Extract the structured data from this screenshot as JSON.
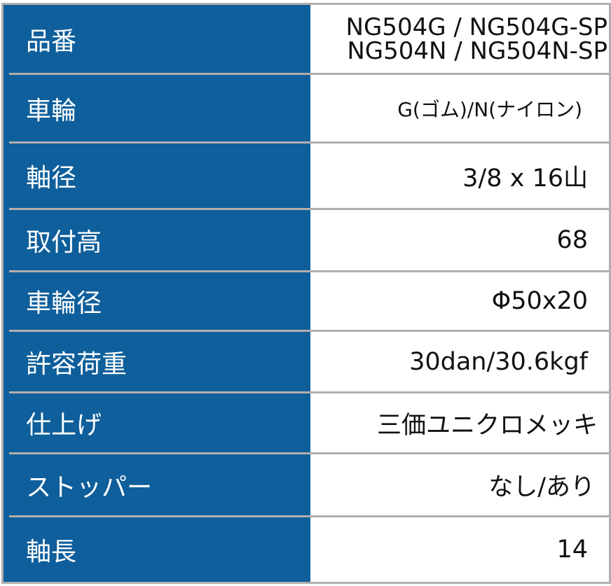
{
  "colors": {
    "header_bg": "#0e5f9b",
    "border": "#b3aeae"
  },
  "rows": [
    {
      "label": "品番",
      "value_lines": [
        "NG504G / NG504G-SP",
        "NG504N / NG504N-SP"
      ]
    },
    {
      "label": "車輪",
      "value": "G(ゴム)/N(ナイロン)"
    },
    {
      "label": "軸径",
      "value": "3/8 x 16山"
    },
    {
      "label": "取付高",
      "value": "68"
    },
    {
      "label": "車輪径",
      "value": "Φ50x20"
    },
    {
      "label": "許容荷重",
      "value": "30dan/30.6kgf"
    },
    {
      "label": "仕上げ",
      "value": "三価ユニクロメッキ"
    },
    {
      "label": "ストッパー",
      "value": "なし/あり"
    },
    {
      "label": "軸長",
      "value": "14"
    }
  ]
}
